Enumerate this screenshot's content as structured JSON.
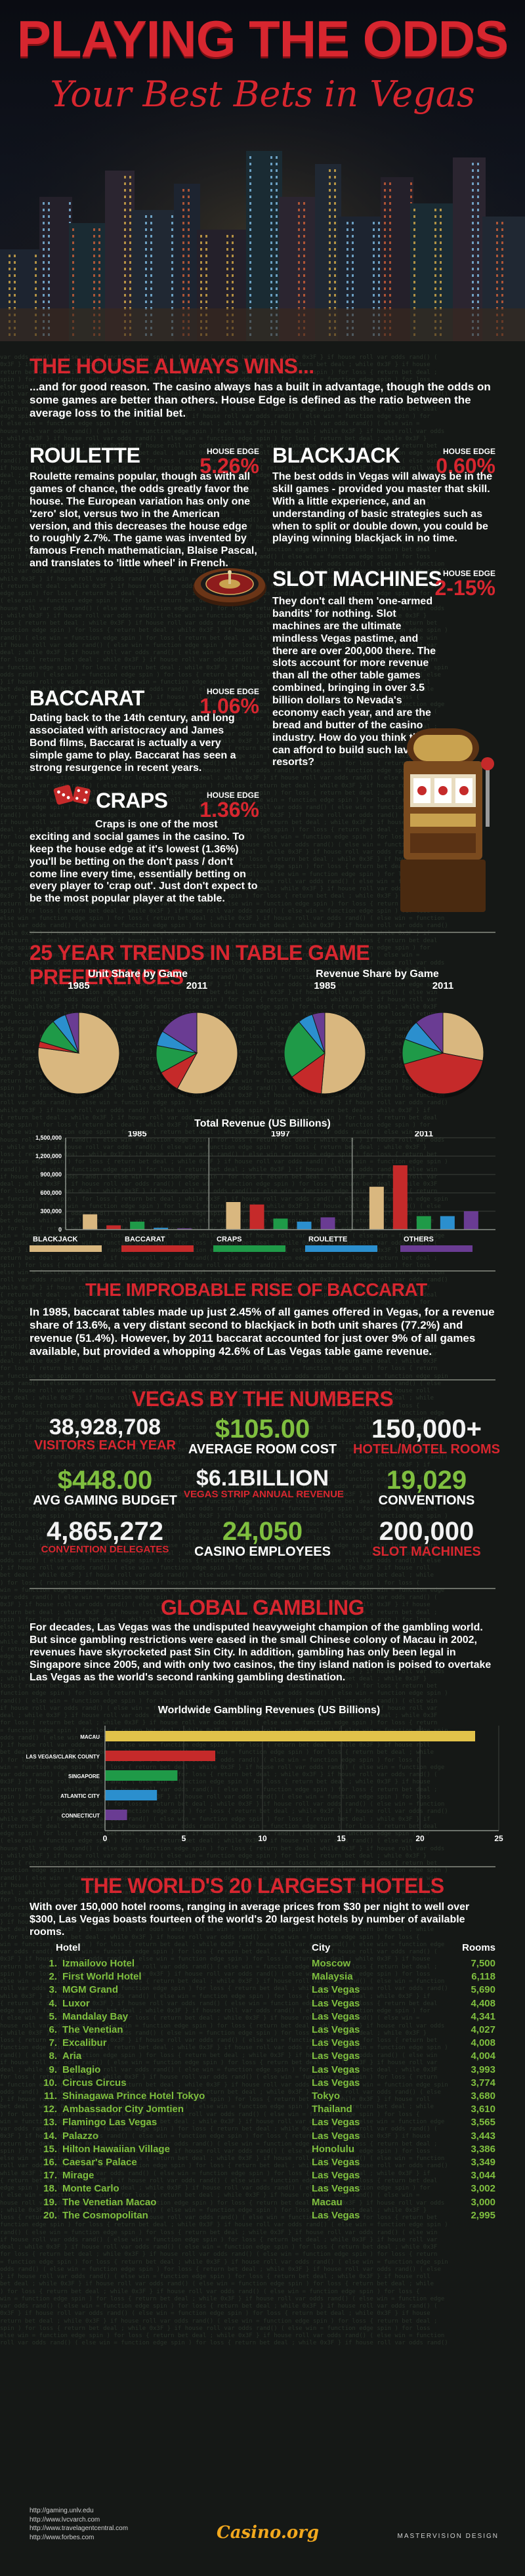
{
  "header": {
    "title": "PLAYING THE ODDS",
    "subtitle": "Your Best Bets in Vegas"
  },
  "house": {
    "title": "THE HOUSE ALWAYS WINS...",
    "intro": "...and for good reason. The casino always has a built in advantage, though the odds on some games are better than others. House Edge is defined as the ratio between the average loss to the initial bet.",
    "he_label": "HOUSE EDGE",
    "games": {
      "roulette": {
        "name": "ROULETTE",
        "edge": "5.26%",
        "text": "Roulette remains popular, though as with all games of chance, the odds greatly favor the house. The European variation has only one 'zero' slot, versus two in the American version, and this decreases the house edge to roughly 2.7%. The game was invented by famous French mathematician, Blaise Pascal, and translates to 'little wheel' in French."
      },
      "blackjack": {
        "name": "BLACKJACK",
        "edge": "0.60%",
        "text": "The best odds in Vegas will always be in the skill games - provided you master that skill. With a little experience, and an understanding of basic strategies such as when to split or double down, you could be playing winning blackjack in no time."
      },
      "slots": {
        "name": "SLOT MACHINES",
        "edge": "2-15%",
        "text": "They don't call them 'one-armed bandits' for nothing. Slot machines are the ultimate mindless Vegas pastime, and there are over 200,000 there. The slots account for more revenue than all the other table games combined, bringing in over 3.5 billion dollars to Nevada's economy each year, and are the bread and butter of the casino industry. How do you think they can afford to build such lavish resorts?"
      },
      "baccarat": {
        "name": "BACCARAT",
        "edge": "1.06%",
        "text": "Dating back to the 14th century, and long associated with aristocracy and James Bond films, Baccarat is actually a very simple game to play. Baccarat has seen a strong resurgence in recent years."
      },
      "craps": {
        "name": "CRAPS",
        "edge": "1.36%",
        "text": "Craps is one of the most exciting and social games in the casino. To keep the house edge at it's lowest (1.36%) you'll be betting on the don't pass / don't come line every time, essentially betting on every player to 'crap out'. Just don't expect to be the most popular player at the table."
      }
    }
  },
  "trends": {
    "title": "25 YEAR TRENDS IN TABLE GAME PREFERENCES",
    "unit_title": "Unit Share by Game",
    "revenue_title": "Revenue Share by Game",
    "year_1985": "1985",
    "year_2011": "2011",
    "bar_title": "Total Revenue (US Billions)",
    "bar_years": [
      "1985",
      "1997",
      "2011"
    ]
  },
  "chart_data": [
    {
      "type": "pie",
      "title": "Unit Share by Game",
      "subtitle": "1985",
      "labels": [
        "BLACKJACK",
        "BACCARAT",
        "CRAPS",
        "ROULETTE",
        "OTHERS"
      ],
      "values": [
        77.2,
        2.45,
        9.5,
        5.5,
        5.35
      ]
    },
    {
      "type": "pie",
      "title": "Unit Share by Game",
      "subtitle": "2011",
      "labels": [
        "BLACKJACK",
        "BACCARAT",
        "CRAPS",
        "ROULETTE",
        "OTHERS"
      ],
      "values": [
        58,
        9,
        11,
        6,
        16
      ]
    },
    {
      "type": "pie",
      "title": "Revenue Share by Game",
      "subtitle": "1985",
      "labels": [
        "BLACKJACK",
        "BACCARAT",
        "CRAPS",
        "ROULETTE",
        "OTHERS"
      ],
      "values": [
        51.4,
        13.6,
        24,
        6,
        5
      ]
    },
    {
      "type": "pie",
      "title": "Revenue Share by Game",
      "subtitle": "2011",
      "labels": [
        "BLACKJACK",
        "BACCARAT",
        "CRAPS",
        "ROULETTE",
        "OTHERS"
      ],
      "values": [
        28,
        42.6,
        10,
        8,
        11.4
      ]
    },
    {
      "type": "bar",
      "title": "Total Revenue (US Billions)",
      "categories": [
        "1985",
        "1997",
        "2011"
      ],
      "series": [
        {
          "name": "BLACKJACK",
          "values": [
            250,
            450,
            700
          ]
        },
        {
          "name": "BACCARAT",
          "values": [
            70,
            410,
            1050
          ]
        },
        {
          "name": "CRAPS",
          "values": [
            130,
            180,
            220
          ]
        },
        {
          "name": "ROULETTE",
          "values": [
            30,
            130,
            220
          ]
        },
        {
          "name": "OTHERS",
          "values": [
            20,
            200,
            300
          ]
        }
      ],
      "yticks": [
        "1,500,000",
        "1,200,000",
        "900,000",
        "600,000",
        "300,000",
        "0"
      ],
      "ylim": [
        0,
        1500
      ],
      "colors": [
        "#d9b77f",
        "#c52a2a",
        "#1f9a48",
        "#2b8fce",
        "#6a3c93"
      ]
    },
    {
      "type": "bar",
      "orientation": "horizontal",
      "title": "Worldwide Gambling Revenues (US Billions)",
      "categories": [
        "MACAU",
        "LAS VEGAS/CLARK COUNTY",
        "SINGAPORE",
        "ATLANTIC CITY",
        "CONNECTICUT"
      ],
      "values": [
        23.5,
        7,
        4.6,
        3.3,
        1.4
      ],
      "xticks": [
        "0",
        "5",
        "10",
        "15",
        "20",
        "25"
      ],
      "xlim": [
        0,
        25
      ],
      "colors": [
        "#e1c24a",
        "#c52a2a",
        "#1f9a48",
        "#2b8fce",
        "#6a3c93"
      ]
    }
  ],
  "baccarat_rise": {
    "title": "THE IMPROBABLE RISE OF BACCARAT",
    "text": "In 1985, baccarat tables made up just 2.45% of all games offered in Vegas, for a revenue share of 13.6%, a very distant second to blackjack in both unit shares (77.2%) and revenue (51.4%). However, by 2011 baccarat accounted for just over 9% of all games available, but provided a whopping 42.6% of Las Vegas table game revenue."
  },
  "numbers": {
    "title": "VEGAS BY THE NUMBERS",
    "stats": [
      {
        "value": "38,928,708",
        "label": "VISITORS EACH YEAR"
      },
      {
        "value": "$105.00",
        "label": "AVERAGE ROOM COST"
      },
      {
        "value": "150,000+",
        "label": "HOTEL/MOTEL ROOMS"
      },
      {
        "value": "$448.00",
        "label": "AVG GAMING BUDGET"
      },
      {
        "value": "$6.1BILLION",
        "label": "VEGAS STRIP ANNUAL REVENUE"
      },
      {
        "value": "19,029",
        "label": "CONVENTIONS"
      },
      {
        "value": "4,865,272",
        "label": "CONVENTION DELEGATES"
      },
      {
        "value": "24,050",
        "label": "CASINO EMPLOYEES"
      },
      {
        "value": "200,000",
        "label": "SLOT MACHINES"
      }
    ]
  },
  "global": {
    "title": "GLOBAL GAMBLING",
    "text": "For decades, Las Vegas was the undisputed heavyweight champion of the gambling world. But since gambling restrictions were eased in the small Chinese colony of Macau in 2002, revenues have skyrocketed past Sin City. In addition, gambling has only been legal in Singapore since 2005, and with only two casinos, the tiny island nation is poised to overtake Las Vegas as the world's second ranking gambling destination.",
    "chart_title": "Worldwide Gambling Revenues (US Billions)"
  },
  "hotels": {
    "title": "THE WORLD'S 20 LARGEST HOTELS",
    "intro": "With over 150,000 hotel rooms, ranging in average prices from $30 per night to well over $300, Las Vegas boasts fourteen of the world's 20 largest hotels by number of available rooms.",
    "col_hotel": "Hotel",
    "col_city": "City",
    "col_rooms": "Rooms",
    "rows": [
      {
        "n": "1.",
        "hotel": "Izmailovo Hotel",
        "city": "Moscow",
        "rooms": "7,500"
      },
      {
        "n": "2.",
        "hotel": "First World Hotel",
        "city": "Malaysia",
        "rooms": "6,118"
      },
      {
        "n": "3.",
        "hotel": "MGM Grand",
        "city": "Las Vegas",
        "rooms": "5,690"
      },
      {
        "n": "4.",
        "hotel": "Luxor",
        "city": "Las Vegas",
        "rooms": "4,408"
      },
      {
        "n": "5.",
        "hotel": "Mandalay Bay",
        "city": "Las Vegas",
        "rooms": "4,341"
      },
      {
        "n": "6.",
        "hotel": "The Venetian",
        "city": "Las Vegas",
        "rooms": "4,027"
      },
      {
        "n": "7.",
        "hotel": "Excalibur",
        "city": "Las Vegas",
        "rooms": "4,008"
      },
      {
        "n": "8.",
        "hotel": "Aria",
        "city": "Las Vegas",
        "rooms": "4,004"
      },
      {
        "n": "9.",
        "hotel": "Bellagio",
        "city": "Las Vegas",
        "rooms": "3,993"
      },
      {
        "n": "10.",
        "hotel": "Circus Circus",
        "city": "Las Vegas",
        "rooms": "3,774"
      },
      {
        "n": "11.",
        "hotel": "Shinagawa Prince Hotel Tokyo",
        "city": "Tokyo",
        "rooms": "3,680"
      },
      {
        "n": "12.",
        "hotel": "Ambassador City Jomtien",
        "city": "Thailand",
        "rooms": "3,610"
      },
      {
        "n": "13.",
        "hotel": "Flamingo Las Vegas",
        "city": "Las Vegas",
        "rooms": "3,565"
      },
      {
        "n": "14.",
        "hotel": "Palazzo",
        "city": "Las Vegas",
        "rooms": "3,443"
      },
      {
        "n": "15.",
        "hotel": "Hilton Hawaiian Village",
        "city": "Honolulu",
        "rooms": "3,386"
      },
      {
        "n": "16.",
        "hotel": "Caesar's Palace",
        "city": "Las Vegas",
        "rooms": "3,349"
      },
      {
        "n": "17.",
        "hotel": "Mirage",
        "city": "Las Vegas",
        "rooms": "3,044"
      },
      {
        "n": "18.",
        "hotel": "Monte Carlo",
        "city": "Las Vegas",
        "rooms": "3,002"
      },
      {
        "n": "19.",
        "hotel": "The Venetian Macao",
        "city": "Macau",
        "rooms": "3,000"
      },
      {
        "n": "20.",
        "hotel": "The Cosmopolitan",
        "city": "Las Vegas",
        "rooms": "2,995"
      }
    ]
  },
  "footer": {
    "sources": [
      "http://gaming.unlv.edu",
      "http://www.lvcvarch.com",
      "http://www.travelagentcentral.com",
      "http://www.forbes.com"
    ],
    "logo": "Casino.org",
    "credit": "MASTERVISION DESIGN"
  }
}
